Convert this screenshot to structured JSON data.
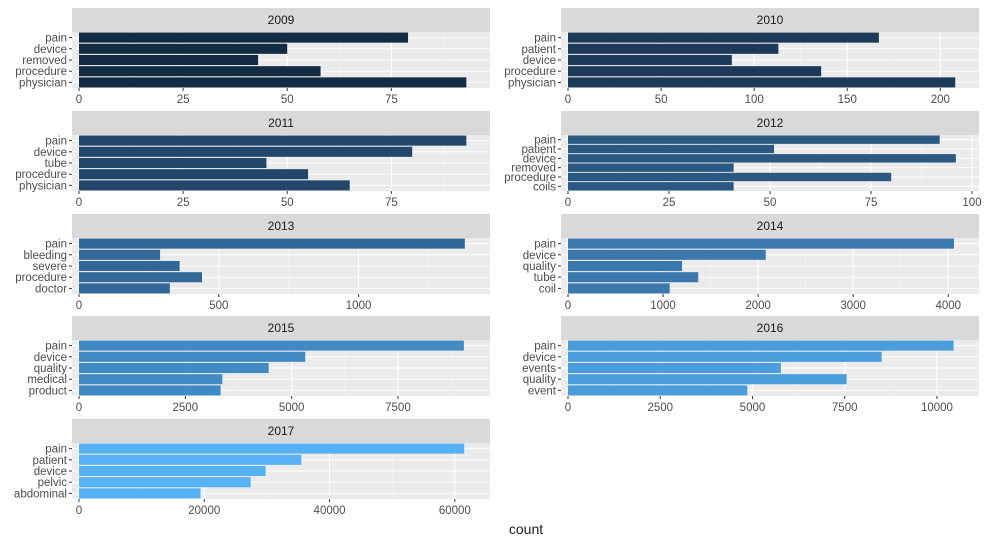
{
  "chart_data": {
    "type": "bar",
    "orientation": "horizontal",
    "xlabel": "count",
    "ylabel": "",
    "grid": true,
    "legend": "none",
    "panels": [
      {
        "strip": "2009",
        "categories": [
          "pain",
          "device",
          "removed",
          "procedure",
          "physician"
        ],
        "values": [
          79,
          50,
          43,
          58,
          93
        ],
        "xlim": [
          0,
          97
        ],
        "ticks": [
          0,
          25,
          50,
          75
        ],
        "color": "#132b43"
      },
      {
        "strip": "2010",
        "categories": [
          "pain",
          "patient",
          "device",
          "procedure",
          "physician"
        ],
        "values": [
          167,
          113,
          88,
          136,
          208
        ],
        "xlim": [
          0,
          217
        ],
        "ticks": [
          0,
          50,
          100,
          150,
          200
        ],
        "color": "#1d3a58"
      },
      {
        "strip": "2011",
        "categories": [
          "pain",
          "device",
          "tube",
          "procedure",
          "physician"
        ],
        "values": [
          93,
          80,
          45,
          55,
          65
        ],
        "xlim": [
          0,
          97
        ],
        "ticks": [
          0,
          25,
          50,
          75
        ],
        "color": "#23466b"
      },
      {
        "strip": "2012",
        "categories": [
          "pain",
          "patient",
          "device",
          "removed",
          "procedure",
          "coils"
        ],
        "values": [
          92,
          51,
          96,
          41,
          80,
          41
        ],
        "xlim": [
          0,
          100
        ],
        "ticks": [
          0,
          25,
          50,
          75,
          100
        ],
        "color": "#2b5982"
      },
      {
        "strip": "2013",
        "categories": [
          "pain",
          "bleeding",
          "severe",
          "procedure",
          "doctor"
        ],
        "values": [
          1380,
          290,
          360,
          440,
          325
        ],
        "xlim": [
          0,
          1445
        ],
        "ticks": [
          0,
          500,
          1000
        ],
        "color": "#326897"
      },
      {
        "strip": "2014",
        "categories": [
          "pain",
          "device",
          "quality",
          "tube",
          "coil"
        ],
        "values": [
          4060,
          2080,
          1200,
          1370,
          1070
        ],
        "xlim": [
          0,
          4250
        ],
        "ticks": [
          0,
          1000,
          2000,
          3000,
          4000
        ],
        "color": "#3a78ad"
      },
      {
        "strip": "2015",
        "categories": [
          "pain",
          "device",
          "quality",
          "medical",
          "product"
        ],
        "values": [
          9050,
          5320,
          4460,
          3370,
          3330
        ],
        "xlim": [
          0,
          9500
        ],
        "ticks": [
          0,
          2500,
          5000,
          7500
        ],
        "color": "#418ac4"
      },
      {
        "strip": "2016",
        "categories": [
          "pain",
          "device",
          "events",
          "quality",
          "event"
        ],
        "values": [
          10450,
          8500,
          5770,
          7550,
          4860
        ],
        "xlim": [
          0,
          10950
        ],
        "ticks": [
          0,
          2500,
          5000,
          7500,
          10000
        ],
        "color": "#4a9dda"
      },
      {
        "strip": "2017",
        "categories": [
          "pain",
          "patient",
          "device",
          "pelvic",
          "abdominal"
        ],
        "values": [
          61500,
          35500,
          29800,
          27400,
          19400
        ],
        "xlim": [
          0,
          64500
        ],
        "ticks": [
          0,
          20000,
          40000,
          60000
        ],
        "color": "#56b1f7"
      }
    ]
  }
}
